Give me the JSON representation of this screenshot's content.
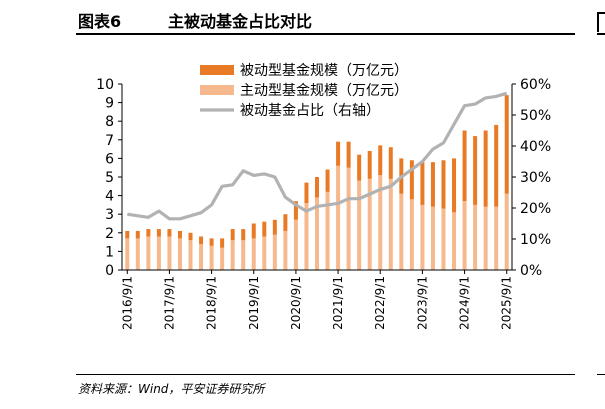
{
  "header": {
    "figure_number": "图表6",
    "title": "主被动基金占比对比"
  },
  "source": {
    "text": "资料来源：Wind，平安证券研究所"
  },
  "colors": {
    "passive": "#E97A25",
    "active": "#F6B98D",
    "ratio": "#B2B2B2",
    "axis": "#000000"
  },
  "chart_data": {
    "type": "bar",
    "subtype": "stacked bar with line on secondary axis",
    "legend_position": "top-center",
    "x_tick_labels": [
      "2016/9/1",
      "2017/9/1",
      "2018/9/1",
      "2019/9/1",
      "2020/9/1",
      "2021/9/1",
      "2022/9/1",
      "2023/9/1",
      "2024/9/1",
      "2025/9/1"
    ],
    "categories": [
      "2016/9",
      "2016/12",
      "2017/3",
      "2017/6",
      "2017/9",
      "2017/12",
      "2018/3",
      "2018/6",
      "2018/9",
      "2018/12",
      "2019/3",
      "2019/6",
      "2019/9",
      "2019/12",
      "2020/3",
      "2020/6",
      "2020/9",
      "2020/12",
      "2021/3",
      "2021/6",
      "2021/9",
      "2021/12",
      "2022/3",
      "2022/6",
      "2022/9",
      "2022/12",
      "2023/3",
      "2023/6",
      "2023/9",
      "2023/12",
      "2024/3",
      "2024/6",
      "2024/9",
      "2024/12",
      "2025/3",
      "2025/6",
      "2025/9"
    ],
    "y_left": {
      "label": "万亿元",
      "lim": [
        0,
        10
      ],
      "ticks": [
        "0",
        "1",
        "2",
        "3",
        "4",
        "5",
        "6",
        "7",
        "8",
        "9",
        "10"
      ]
    },
    "y_right": {
      "label": "%",
      "lim": [
        0,
        60
      ],
      "ticks": [
        "0%",
        "10%",
        "20%",
        "30%",
        "40%",
        "50%",
        "60%"
      ]
    },
    "series": [
      {
        "name": "被动型基金规模（万亿元）",
        "kind": "bar-stacked-top",
        "axis": "left",
        "values": [
          0.4,
          0.4,
          0.4,
          0.4,
          0.4,
          0.4,
          0.4,
          0.4,
          0.4,
          0.5,
          0.6,
          0.6,
          0.8,
          0.8,
          0.8,
          0.9,
          1.0,
          1.1,
          1.1,
          1.2,
          1.3,
          1.4,
          1.4,
          1.5,
          1.6,
          1.7,
          1.9,
          2.1,
          2.3,
          2.4,
          2.6,
          2.9,
          3.8,
          3.7,
          4.1,
          4.4,
          5.3
        ]
      },
      {
        "name": "主动型基金规模（万亿元）",
        "kind": "bar-stacked-bottom",
        "axis": "left",
        "values": [
          1.7,
          1.7,
          1.8,
          1.8,
          1.8,
          1.7,
          1.6,
          1.4,
          1.3,
          1.2,
          1.6,
          1.6,
          1.7,
          1.8,
          1.9,
          2.1,
          2.7,
          3.6,
          3.9,
          4.2,
          5.6,
          5.5,
          4.8,
          4.9,
          5.1,
          4.9,
          4.1,
          3.8,
          3.5,
          3.4,
          3.3,
          3.1,
          3.7,
          3.5,
          3.4,
          3.4,
          4.1
        ]
      },
      {
        "name": "被动基金占比（右轴）",
        "kind": "line",
        "axis": "right",
        "values": [
          18.0,
          17.5,
          17.0,
          19.0,
          16.5,
          16.5,
          17.5,
          18.5,
          21.0,
          27.0,
          27.5,
          32.0,
          30.5,
          31.0,
          30.0,
          23.5,
          21.0,
          19.0,
          20.5,
          21.0,
          21.5,
          23.0,
          23.0,
          24.5,
          26.0,
          27.0,
          30.0,
          32.5,
          35.0,
          39.0,
          41.0,
          47.0,
          53.0,
          53.5,
          55.5,
          56.0,
          57.0
        ]
      }
    ]
  }
}
